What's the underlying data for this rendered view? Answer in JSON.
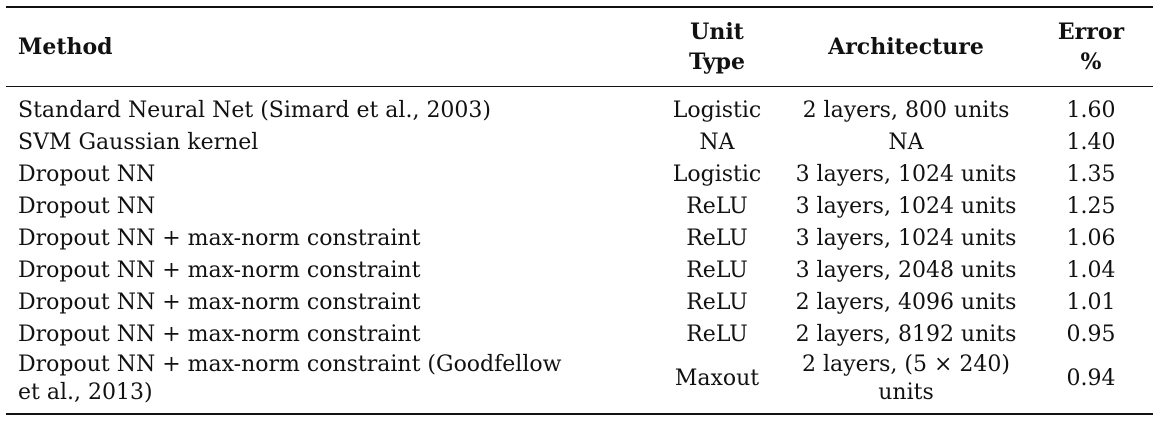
{
  "table": {
    "headers": {
      "method": "Method",
      "unit_line1": "Unit",
      "unit_line2": "Type",
      "architecture": "Architecture",
      "error_line1": "Error",
      "error_line2": "%"
    },
    "rows": [
      {
        "method": "Standard Neural Net (Simard et al., 2003)",
        "unit": "Logistic",
        "arch": "2 layers, 800 units",
        "error": "1.60"
      },
      {
        "method": "SVM Gaussian kernel",
        "unit": "NA",
        "arch": "NA",
        "error": "1.40"
      },
      {
        "method": "Dropout NN",
        "unit": "Logistic",
        "arch": "3 layers, 1024 units",
        "error": "1.35"
      },
      {
        "method": "Dropout NN",
        "unit": "ReLU",
        "arch": "3 layers, 1024 units",
        "error": "1.25"
      },
      {
        "method": "Dropout NN + max-norm constraint",
        "unit": "ReLU",
        "arch": "3 layers, 1024 units",
        "error": "1.06"
      },
      {
        "method": "Dropout NN + max-norm constraint",
        "unit": "ReLU",
        "arch": "3 layers, 2048 units",
        "error": "1.04"
      },
      {
        "method": "Dropout NN + max-norm constraint",
        "unit": "ReLU",
        "arch": "2 layers, 4096 units",
        "error": "1.01"
      },
      {
        "method": "Dropout NN + max-norm constraint",
        "unit": "ReLU",
        "arch": "2 layers, 8192 units",
        "error": "0.95"
      },
      {
        "method_line1": "Dropout NN + max-norm constraint (Goodfellow",
        "method_line2": "et al., 2013)",
        "unit": "Maxout",
        "arch_line1": "2 layers, (5 × 240)",
        "arch_line2": "units",
        "error": "0.94"
      }
    ]
  }
}
